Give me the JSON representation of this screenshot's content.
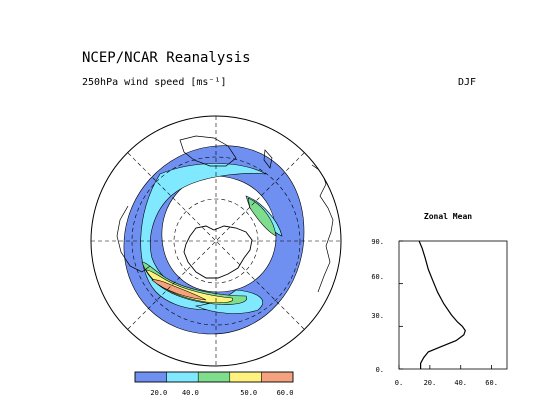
{
  "header": {
    "title": "NCEP/NCAR Reanalysis",
    "subtitle": "250hPa wind speed [ms⁻¹]",
    "season": "DJF"
  },
  "colors": {
    "ocean": "#ffffff",
    "jet_blue": "#6f8ff1",
    "jet_cyan": "#80e8ff",
    "jet_green": "#7fde8d",
    "jet_yellow": "#fff27f",
    "jet_orange": "#f5a27e",
    "contour": "#000000"
  },
  "chart_data": [
    {
      "type": "heatmap",
      "title": "250hPa wind speed [ms⁻¹]",
      "projection": "polar stereographic, south pole centered",
      "levels": [
        20,
        40,
        50,
        60
      ],
      "colorbar_ticks": [
        "20.0",
        "40.0",
        "50.0",
        "60.0"
      ],
      "colorbar_colors": [
        "#6f8ff1",
        "#80e8ff",
        "#7fde8d",
        "#fff27f",
        "#f5a27e"
      ]
    },
    {
      "type": "line",
      "title": "Zonal Mean",
      "xlabel": "",
      "ylabel": "",
      "x_ticks": [
        "0.",
        "20.",
        "40.",
        "60."
      ],
      "y_ticks": [
        "0.",
        "30.",
        "60.",
        "90."
      ],
      "xlim": [
        0,
        70
      ],
      "ylim": [
        0,
        90
      ],
      "series": [
        {
          "points": [
            [
              13,
              90
            ],
            [
              15,
              85
            ],
            [
              17,
              78
            ],
            [
              19,
              70
            ],
            [
              22,
              62
            ],
            [
              25,
              54
            ],
            [
              29,
              46
            ],
            [
              34,
              38
            ],
            [
              38,
              33
            ],
            [
              41,
              30
            ],
            [
              43,
              27
            ],
            [
              42,
              24
            ],
            [
              37,
              20
            ],
            [
              28,
              16
            ],
            [
              19,
              12
            ],
            [
              16,
              8
            ],
            [
              14,
              4
            ],
            [
              14,
              0
            ]
          ]
        }
      ]
    }
  ]
}
